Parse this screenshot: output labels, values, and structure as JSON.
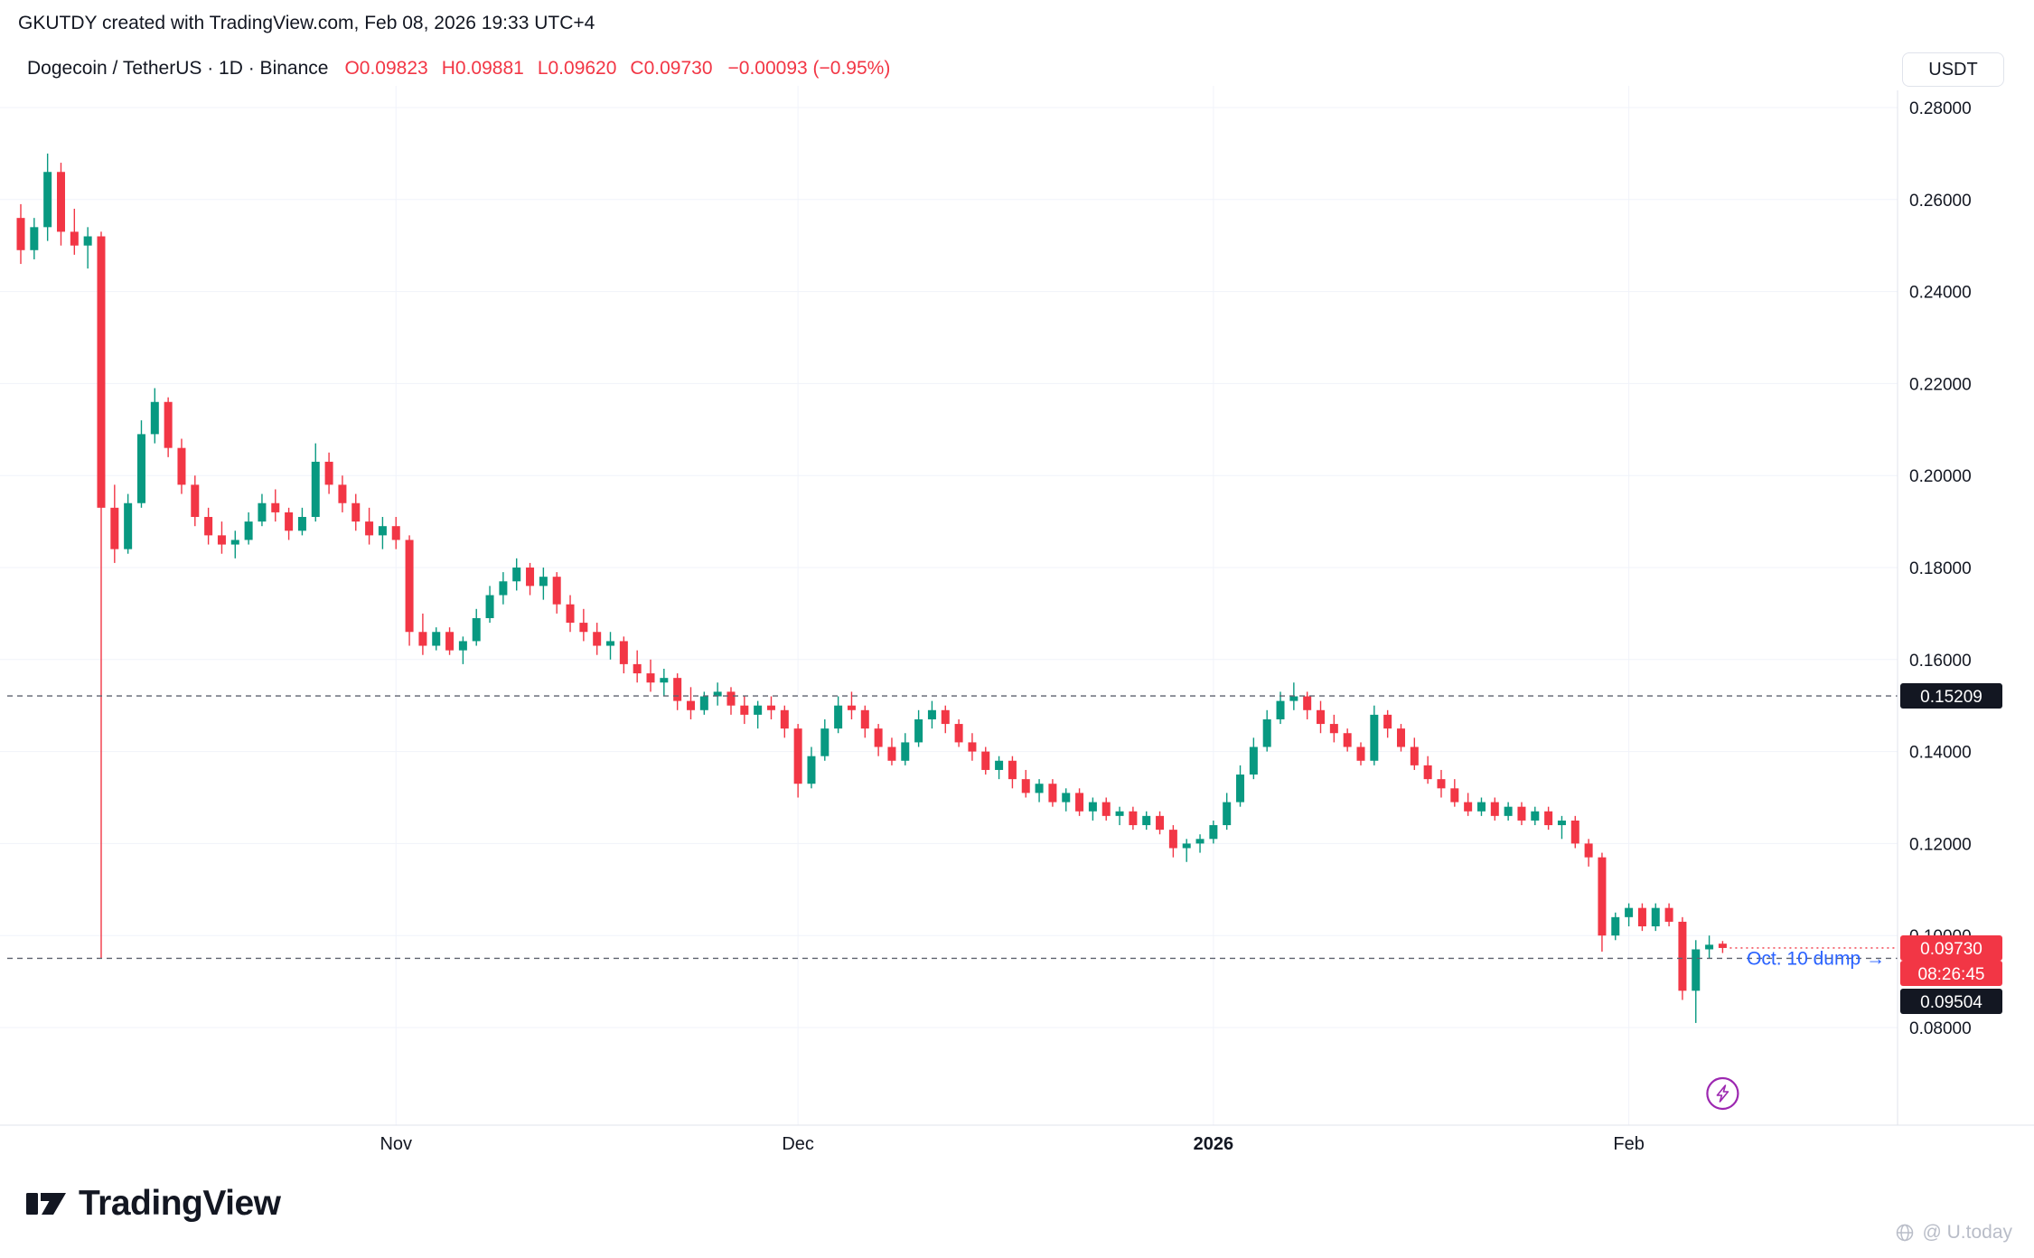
{
  "attribution": "GKUTDY created with TradingView.com, Feb 08, 2026 19:33 UTC+4",
  "legend": {
    "title": "Dogecoin / TetherUS · 1D · Binance",
    "fields": [
      {
        "label": "O",
        "value": "0.09823"
      },
      {
        "label": "H",
        "value": "0.09881"
      },
      {
        "label": "L",
        "value": "0.09620"
      },
      {
        "label": "C",
        "value": "0.09730"
      }
    ],
    "change": "−0.00093 (−0.95%)"
  },
  "price_axis": {
    "currency": "USDT",
    "ticks": [
      "0.28000",
      "0.26000",
      "0.24000",
      "0.22000",
      "0.20000",
      "0.18000",
      "0.16000",
      "0.14000",
      "0.12000",
      "0.10000",
      "0.08000"
    ]
  },
  "time_axis": {
    "labels": [
      {
        "label": "Nov",
        "index": 28,
        "bold": false
      },
      {
        "label": "Dec",
        "index": 58,
        "bold": false
      },
      {
        "label": "2026",
        "index": 89,
        "bold": true
      },
      {
        "label": "Feb",
        "index": 120,
        "bold": false
      }
    ]
  },
  "levels": {
    "resistance": {
      "price": 0.15209,
      "label": "0.15209"
    },
    "support": {
      "price": 0.09504,
      "label": "0.09504",
      "annotation": "Oct. 10 dump →"
    },
    "last_price": {
      "price": 0.0973,
      "label": "0.09730",
      "countdown": "08:26:45",
      "direction": "down"
    }
  },
  "footer": {
    "brand": "TradingView",
    "credit": "@ U.today"
  },
  "colors": {
    "up": "#089981",
    "down": "#f23645",
    "accent_blue": "#2962ff",
    "badge_dark": "#131722",
    "level_line": "#5d616e",
    "grid": "#f0f3fa",
    "axis_border": "#e0e3eb",
    "axis_text": "#131722",
    "event_purple": "#9c27b0",
    "watermark": "#b9bdc8"
  },
  "chart_data": {
    "type": "candlestick",
    "title": "Dogecoin / TetherUS, 1D, Binance",
    "price_unit": "USDT",
    "start_date": "2025-10-04",
    "end_date": "2026-02-08",
    "frequency": "daily",
    "columns": [
      "open",
      "high",
      "low",
      "close"
    ],
    "axis_ranges": {
      "y": [
        0.08,
        0.28
      ]
    },
    "key_events": [
      {
        "date": "2025-10-10",
        "note": "Oct. 10 dump, wick low 0.09504"
      }
    ],
    "ohlc": [
      [
        0.256,
        0.259,
        0.246,
        0.249
      ],
      [
        0.249,
        0.256,
        0.247,
        0.254
      ],
      [
        0.254,
        0.27,
        0.251,
        0.266
      ],
      [
        0.266,
        0.268,
        0.25,
        0.253
      ],
      [
        0.253,
        0.258,
        0.248,
        0.25
      ],
      [
        0.25,
        0.254,
        0.245,
        0.252
      ],
      [
        0.252,
        0.253,
        0.09504,
        0.193
      ],
      [
        0.193,
        0.198,
        0.181,
        0.184
      ],
      [
        0.184,
        0.196,
        0.183,
        0.194
      ],
      [
        0.194,
        0.212,
        0.193,
        0.209
      ],
      [
        0.209,
        0.219,
        0.207,
        0.216
      ],
      [
        0.216,
        0.217,
        0.204,
        0.206
      ],
      [
        0.206,
        0.208,
        0.196,
        0.198
      ],
      [
        0.198,
        0.2,
        0.189,
        0.191
      ],
      [
        0.191,
        0.193,
        0.185,
        0.187
      ],
      [
        0.187,
        0.19,
        0.183,
        0.185
      ],
      [
        0.185,
        0.188,
        0.182,
        0.186
      ],
      [
        0.186,
        0.192,
        0.185,
        0.19
      ],
      [
        0.19,
        0.196,
        0.189,
        0.194
      ],
      [
        0.194,
        0.197,
        0.19,
        0.192
      ],
      [
        0.192,
        0.193,
        0.186,
        0.188
      ],
      [
        0.188,
        0.193,
        0.187,
        0.191
      ],
      [
        0.191,
        0.207,
        0.19,
        0.203
      ],
      [
        0.203,
        0.205,
        0.196,
        0.198
      ],
      [
        0.198,
        0.2,
        0.192,
        0.194
      ],
      [
        0.194,
        0.196,
        0.188,
        0.19
      ],
      [
        0.19,
        0.193,
        0.185,
        0.187
      ],
      [
        0.187,
        0.191,
        0.184,
        0.189
      ],
      [
        0.189,
        0.191,
        0.184,
        0.186
      ],
      [
        0.186,
        0.187,
        0.163,
        0.166
      ],
      [
        0.166,
        0.17,
        0.161,
        0.163
      ],
      [
        0.163,
        0.167,
        0.162,
        0.166
      ],
      [
        0.166,
        0.167,
        0.161,
        0.162
      ],
      [
        0.162,
        0.165,
        0.159,
        0.164
      ],
      [
        0.164,
        0.171,
        0.163,
        0.169
      ],
      [
        0.169,
        0.176,
        0.168,
        0.174
      ],
      [
        0.174,
        0.179,
        0.172,
        0.177
      ],
      [
        0.177,
        0.182,
        0.175,
        0.18
      ],
      [
        0.18,
        0.181,
        0.174,
        0.176
      ],
      [
        0.176,
        0.18,
        0.173,
        0.178
      ],
      [
        0.178,
        0.179,
        0.17,
        0.172
      ],
      [
        0.172,
        0.174,
        0.166,
        0.168
      ],
      [
        0.168,
        0.171,
        0.164,
        0.166
      ],
      [
        0.166,
        0.168,
        0.161,
        0.163
      ],
      [
        0.163,
        0.166,
        0.16,
        0.164
      ],
      [
        0.164,
        0.165,
        0.157,
        0.159
      ],
      [
        0.159,
        0.162,
        0.155,
        0.157
      ],
      [
        0.157,
        0.16,
        0.153,
        0.155
      ],
      [
        0.155,
        0.158,
        0.152,
        0.156
      ],
      [
        0.156,
        0.157,
        0.149,
        0.151
      ],
      [
        0.151,
        0.154,
        0.147,
        0.149
      ],
      [
        0.149,
        0.153,
        0.148,
        0.152
      ],
      [
        0.152,
        0.155,
        0.15,
        0.153
      ],
      [
        0.153,
        0.154,
        0.148,
        0.15
      ],
      [
        0.15,
        0.152,
        0.146,
        0.148
      ],
      [
        0.148,
        0.151,
        0.145,
        0.15
      ],
      [
        0.15,
        0.152,
        0.147,
        0.149
      ],
      [
        0.149,
        0.15,
        0.143,
        0.145
      ],
      [
        0.145,
        0.146,
        0.13,
        0.133
      ],
      [
        0.133,
        0.141,
        0.132,
        0.139
      ],
      [
        0.139,
        0.147,
        0.138,
        0.145
      ],
      [
        0.145,
        0.152,
        0.144,
        0.15
      ],
      [
        0.15,
        0.153,
        0.147,
        0.149
      ],
      [
        0.149,
        0.15,
        0.143,
        0.145
      ],
      [
        0.145,
        0.146,
        0.139,
        0.141
      ],
      [
        0.141,
        0.143,
        0.137,
        0.138
      ],
      [
        0.138,
        0.144,
        0.137,
        0.142
      ],
      [
        0.142,
        0.149,
        0.141,
        0.147
      ],
      [
        0.147,
        0.151,
        0.145,
        0.149
      ],
      [
        0.149,
        0.15,
        0.144,
        0.146
      ],
      [
        0.146,
        0.147,
        0.141,
        0.142
      ],
      [
        0.142,
        0.144,
        0.138,
        0.14
      ],
      [
        0.14,
        0.141,
        0.135,
        0.136
      ],
      [
        0.136,
        0.139,
        0.134,
        0.138
      ],
      [
        0.138,
        0.139,
        0.132,
        0.134
      ],
      [
        0.134,
        0.136,
        0.13,
        0.131
      ],
      [
        0.131,
        0.134,
        0.129,
        0.133
      ],
      [
        0.133,
        0.134,
        0.128,
        0.129
      ],
      [
        0.129,
        0.132,
        0.127,
        0.131
      ],
      [
        0.131,
        0.132,
        0.126,
        0.127
      ],
      [
        0.127,
        0.13,
        0.125,
        0.129
      ],
      [
        0.129,
        0.13,
        0.125,
        0.126
      ],
      [
        0.126,
        0.128,
        0.124,
        0.127
      ],
      [
        0.127,
        0.128,
        0.123,
        0.124
      ],
      [
        0.124,
        0.127,
        0.123,
        0.126
      ],
      [
        0.126,
        0.127,
        0.122,
        0.123
      ],
      [
        0.123,
        0.124,
        0.117,
        0.119
      ],
      [
        0.119,
        0.121,
        0.116,
        0.12
      ],
      [
        0.12,
        0.122,
        0.118,
        0.121
      ],
      [
        0.121,
        0.125,
        0.12,
        0.124
      ],
      [
        0.124,
        0.131,
        0.123,
        0.129
      ],
      [
        0.129,
        0.137,
        0.128,
        0.135
      ],
      [
        0.135,
        0.143,
        0.134,
        0.141
      ],
      [
        0.141,
        0.149,
        0.14,
        0.147
      ],
      [
        0.147,
        0.153,
        0.146,
        0.151
      ],
      [
        0.151,
        0.155,
        0.149,
        0.152
      ],
      [
        0.152,
        0.153,
        0.147,
        0.149
      ],
      [
        0.149,
        0.151,
        0.144,
        0.146
      ],
      [
        0.146,
        0.148,
        0.142,
        0.144
      ],
      [
        0.144,
        0.145,
        0.14,
        0.141
      ],
      [
        0.141,
        0.142,
        0.137,
        0.138
      ],
      [
        0.138,
        0.15,
        0.137,
        0.148
      ],
      [
        0.148,
        0.149,
        0.143,
        0.145
      ],
      [
        0.145,
        0.146,
        0.14,
        0.141
      ],
      [
        0.141,
        0.143,
        0.136,
        0.137
      ],
      [
        0.137,
        0.139,
        0.133,
        0.134
      ],
      [
        0.134,
        0.136,
        0.13,
        0.132
      ],
      [
        0.132,
        0.134,
        0.128,
        0.129
      ],
      [
        0.129,
        0.131,
        0.126,
        0.127
      ],
      [
        0.127,
        0.13,
        0.126,
        0.129
      ],
      [
        0.129,
        0.13,
        0.125,
        0.126
      ],
      [
        0.126,
        0.129,
        0.125,
        0.128
      ],
      [
        0.128,
        0.129,
        0.124,
        0.125
      ],
      [
        0.125,
        0.128,
        0.124,
        0.127
      ],
      [
        0.127,
        0.128,
        0.123,
        0.124
      ],
      [
        0.124,
        0.126,
        0.121,
        0.125
      ],
      [
        0.125,
        0.126,
        0.119,
        0.12
      ],
      [
        0.12,
        0.121,
        0.115,
        0.117
      ],
      [
        0.117,
        0.118,
        0.0965,
        0.1
      ],
      [
        0.1,
        0.105,
        0.099,
        0.104
      ],
      [
        0.104,
        0.107,
        0.102,
        0.106
      ],
      [
        0.106,
        0.107,
        0.101,
        0.102
      ],
      [
        0.102,
        0.107,
        0.101,
        0.106
      ],
      [
        0.106,
        0.107,
        0.102,
        0.103
      ],
      [
        0.103,
        0.104,
        0.086,
        0.088
      ],
      [
        0.088,
        0.099,
        0.081,
        0.097
      ],
      [
        0.097,
        0.1,
        0.095,
        0.098
      ],
      [
        0.09823,
        0.09881,
        0.0962,
        0.0973
      ]
    ]
  }
}
